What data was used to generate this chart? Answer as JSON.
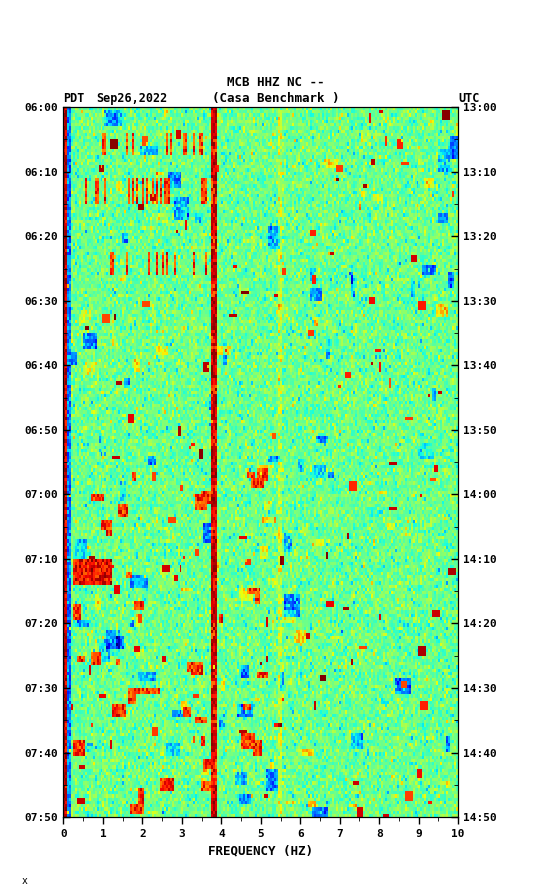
{
  "title_line1": "MCB HHZ NC --",
  "title_line2": "(Casa Benchmark )",
  "label_left": "PDT",
  "label_date": "Sep26,2022",
  "label_right": "UTC",
  "freq_label": "FREQUENCY (HZ)",
  "freq_min": 0,
  "freq_max": 10,
  "pdt_times": [
    "06:00",
    "06:10",
    "06:20",
    "06:30",
    "06:40",
    "06:50",
    "07:00",
    "07:10",
    "07:20",
    "07:30",
    "07:40",
    "07:50"
  ],
  "utc_times": [
    "13:00",
    "13:10",
    "13:20",
    "13:30",
    "13:40",
    "13:50",
    "14:00",
    "14:10",
    "14:20",
    "14:30",
    "14:40",
    "14:50"
  ],
  "x_ticks": [
    0,
    1,
    2,
    3,
    4,
    5,
    6,
    7,
    8,
    9,
    10
  ],
  "background_color": "#ffffff",
  "colormap": "jet",
  "fig_width": 5.52,
  "fig_height": 8.93,
  "dpi": 100,
  "usgs_color": "#006633",
  "noise_seed": 42,
  "n_time": 220,
  "n_freq": 200,
  "vmin": -160,
  "vmax": -60
}
